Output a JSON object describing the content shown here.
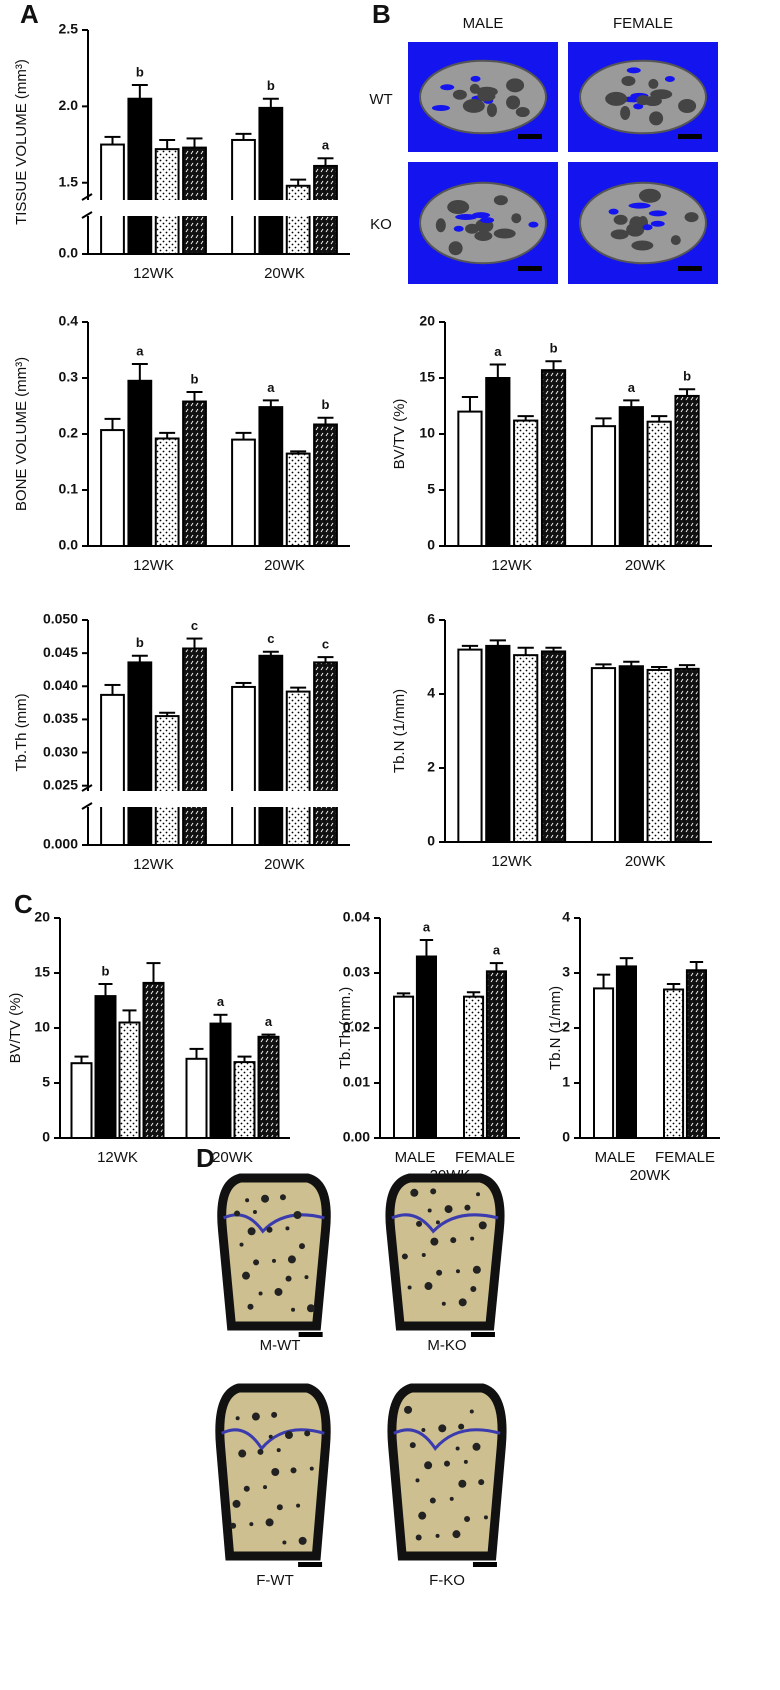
{
  "panels": {
    "letters": [
      "A",
      "B",
      "C",
      "D"
    ]
  },
  "images_b": {
    "columns": [
      "MALE",
      "FEMALE"
    ],
    "rows": [
      "WT",
      "KO"
    ]
  },
  "images_d": {
    "labels": [
      "M-WT",
      "M-KO",
      "F-WT",
      "F-KO"
    ]
  },
  "chart_data": [
    {
      "type": "bar",
      "y_label": "TISSUE VOLUME (mm³)",
      "categories": [
        "12WK",
        "20WK"
      ],
      "ylim": [
        0,
        2.5
      ],
      "axis_break": [
        0.1,
        1.4
      ],
      "yticks": [
        {
          "value": 0,
          "label": "0.0"
        },
        1.5,
        {
          "value": 2,
          "label": "2.0"
        },
        2.5
      ],
      "series": [
        {
          "color": "#ffffff",
          "pattern": "none",
          "values": [
            1.75,
            1.78
          ],
          "errors": [
            0.05,
            0.04
          ],
          "labels": [
            null,
            null
          ]
        },
        {
          "color": "#000000",
          "pattern": "none",
          "values": [
            2.05,
            1.99
          ],
          "errors": [
            0.09,
            0.06
          ],
          "labels": [
            "b",
            "b"
          ]
        },
        {
          "color": "#ffffff",
          "pattern": "dots",
          "values": [
            1.72,
            1.48
          ],
          "errors": [
            0.06,
            0.04
          ],
          "labels": [
            null,
            null
          ]
        },
        {
          "color": "#000000",
          "pattern": "hatch",
          "values": [
            1.73,
            1.61
          ],
          "errors": [
            0.06,
            0.05
          ],
          "labels": [
            null,
            "a"
          ]
        }
      ]
    },
    {
      "type": "bar",
      "y_label": "BONE  VOLUME (mm³)",
      "categories": [
        "12WK",
        "20WK"
      ],
      "ylim": [
        0,
        0.4
      ],
      "yticks": [
        {
          "value": 0,
          "label": "0.0"
        },
        0.1,
        0.2,
        0.3,
        0.4
      ],
      "series": [
        {
          "color": "#ffffff",
          "pattern": "none",
          "values": [
            0.207,
            0.19
          ],
          "errors": [
            0.02,
            0.012
          ],
          "labels": [
            null,
            null
          ]
        },
        {
          "color": "#000000",
          "pattern": "none",
          "values": [
            0.295,
            0.248
          ],
          "errors": [
            0.03,
            0.012
          ],
          "labels": [
            "a",
            "a"
          ]
        },
        {
          "color": "#ffffff",
          "pattern": "dots",
          "values": [
            0.192,
            0.165
          ],
          "errors": [
            0.01,
            0.004
          ],
          "labels": [
            null,
            null
          ]
        },
        {
          "color": "#000000",
          "pattern": "hatch",
          "values": [
            0.258,
            0.217
          ],
          "errors": [
            0.017,
            0.012
          ],
          "labels": [
            "b",
            "b"
          ]
        }
      ]
    },
    {
      "type": "bar",
      "y_label": "Tb.Th (mm)",
      "categories": [
        "12WK",
        "20WK"
      ],
      "ylim": [
        0,
        0.05
      ],
      "axis_break": [
        0.003,
        0.0245
      ],
      "yticks": [
        {
          "value": 0,
          "label": "0.000"
        },
        0.025,
        {
          "value": 0.03,
          "label": "0.030"
        },
        0.035,
        {
          "value": 0.04,
          "label": "0.040"
        },
        0.045,
        {
          "value": 0.05,
          "label": "0.050"
        }
      ],
      "series": [
        {
          "color": "#ffffff",
          "pattern": "none",
          "values": [
            0.0387,
            0.0399
          ],
          "errors": [
            0.0015,
            0.0006
          ],
          "labels": [
            null,
            null
          ]
        },
        {
          "color": "#000000",
          "pattern": "none",
          "values": [
            0.0436,
            0.0446
          ],
          "errors": [
            0.001,
            0.0006
          ],
          "labels": [
            "b",
            "c"
          ]
        },
        {
          "color": "#ffffff",
          "pattern": "dots",
          "values": [
            0.0355,
            0.0392
          ],
          "errors": [
            0.0005,
            0.0006
          ],
          "labels": [
            null,
            null
          ]
        },
        {
          "color": "#000000",
          "pattern": "hatch",
          "values": [
            0.0457,
            0.0436
          ],
          "errors": [
            0.0015,
            0.0008
          ],
          "labels": [
            "c",
            "c"
          ]
        }
      ]
    },
    {
      "type": "bar",
      "y_label": "BV/TV (%)",
      "categories": [
        "12WK",
        "20WK"
      ],
      "ylim": [
        0,
        20
      ],
      "yticks": [
        0,
        5,
        10,
        15,
        20
      ],
      "series": [
        {
          "color": "#ffffff",
          "pattern": "none",
          "values": [
            12.0,
            10.7
          ],
          "errors": [
            1.3,
            0.7
          ],
          "labels": [
            null,
            null
          ]
        },
        {
          "color": "#000000",
          "pattern": "none",
          "values": [
            15.0,
            12.4
          ],
          "errors": [
            1.2,
            0.6
          ],
          "labels": [
            "a",
            "a"
          ]
        },
        {
          "color": "#ffffff",
          "pattern": "dots",
          "values": [
            11.2,
            11.1
          ],
          "errors": [
            0.4,
            0.5
          ],
          "labels": [
            null,
            null
          ]
        },
        {
          "color": "#000000",
          "pattern": "hatch",
          "values": [
            15.7,
            13.4
          ],
          "errors": [
            0.8,
            0.6
          ],
          "labels": [
            "b",
            "b"
          ]
        }
      ]
    },
    {
      "type": "bar",
      "y_label": "Tb.N  (1/mm)",
      "categories": [
        "12WK",
        "20WK"
      ],
      "ylim": [
        0,
        6
      ],
      "yticks": [
        0,
        2,
        4,
        6
      ],
      "series": [
        {
          "color": "#ffffff",
          "pattern": "none",
          "values": [
            5.2,
            4.7
          ],
          "errors": [
            0.1,
            0.1
          ],
          "labels": [
            null,
            null
          ]
        },
        {
          "color": "#000000",
          "pattern": "none",
          "values": [
            5.3,
            4.75
          ],
          "errors": [
            0.15,
            0.12
          ],
          "labels": [
            null,
            null
          ]
        },
        {
          "color": "#ffffff",
          "pattern": "dots",
          "values": [
            5.05,
            4.65
          ],
          "errors": [
            0.2,
            0.08
          ],
          "labels": [
            null,
            null
          ]
        },
        {
          "color": "#000000",
          "pattern": "hatch",
          "values": [
            5.15,
            4.68
          ],
          "errors": [
            0.1,
            0.1
          ],
          "labels": [
            null,
            null
          ]
        }
      ]
    },
    {
      "type": "bar",
      "y_label": "BV/TV (%)",
      "categories": [
        "12WK",
        "20WK"
      ],
      "ylim": [
        0,
        20
      ],
      "yticks": [
        0,
        5,
        10,
        15,
        20
      ],
      "series": [
        {
          "color": "#ffffff",
          "pattern": "none",
          "values": [
            6.8,
            7.2
          ],
          "errors": [
            0.6,
            0.9
          ],
          "labels": [
            null,
            null
          ]
        },
        {
          "color": "#000000",
          "pattern": "none",
          "values": [
            12.9,
            10.4
          ],
          "errors": [
            1.1,
            0.8
          ],
          "labels": [
            "b",
            "a"
          ]
        },
        {
          "color": "#ffffff",
          "pattern": "dots",
          "values": [
            10.5,
            6.9
          ],
          "errors": [
            1.1,
            0.5
          ],
          "labels": [
            null,
            null
          ]
        },
        {
          "color": "#000000",
          "pattern": "hatch",
          "values": [
            14.1,
            9.2
          ],
          "errors": [
            1.8,
            0.2
          ],
          "labels": [
            null,
            "a"
          ]
        }
      ]
    },
    {
      "type": "bar",
      "y_label": "Tb.Th (mm.)",
      "categories": [
        "MALE",
        "FEMALE"
      ],
      "x_label": "20WK",
      "ylim": [
        0,
        0.04
      ],
      "yticks": [
        {
          "value": 0,
          "label": "0.00"
        },
        0.01,
        0.02,
        0.03,
        0.04
      ],
      "series": [
        {
          "color": "#ffffff",
          "pattern": "none",
          "values": [
            0.0257,
            null
          ],
          "errors": [
            0.0006,
            null
          ],
          "labels": [
            null,
            null
          ]
        },
        {
          "color": "#000000",
          "pattern": "none",
          "values": [
            0.033,
            null
          ],
          "errors": [
            0.003,
            null
          ],
          "labels": [
            "a",
            null
          ]
        },
        {
          "color": "#ffffff",
          "pattern": "dots",
          "values": [
            null,
            0.0257
          ],
          "errors": [
            null,
            0.0008
          ],
          "labels": [
            null,
            null
          ]
        },
        {
          "color": "#000000",
          "pattern": "hatch",
          "values": [
            null,
            0.0303
          ],
          "errors": [
            null,
            0.0015
          ],
          "labels": [
            null,
            "a"
          ]
        }
      ]
    },
    {
      "type": "bar",
      "y_label": "Tb.N (1/mm)",
      "categories": [
        "MALE",
        "FEMALE"
      ],
      "x_label": "20WK",
      "ylim": [
        0,
        4
      ],
      "yticks": [
        0,
        1,
        2,
        3,
        4
      ],
      "series": [
        {
          "color": "#ffffff",
          "pattern": "none",
          "values": [
            2.72,
            null
          ],
          "errors": [
            0.25,
            null
          ],
          "labels": [
            null,
            null
          ]
        },
        {
          "color": "#000000",
          "pattern": "none",
          "values": [
            3.12,
            null
          ],
          "errors": [
            0.15,
            null
          ],
          "labels": [
            null,
            null
          ]
        },
        {
          "color": "#ffffff",
          "pattern": "dots",
          "values": [
            null,
            2.7
          ],
          "errors": [
            null,
            0.1
          ],
          "labels": [
            null,
            null
          ]
        },
        {
          "color": "#000000",
          "pattern": "hatch",
          "values": [
            null,
            3.05
          ],
          "errors": [
            null,
            0.15
          ],
          "labels": [
            null,
            null
          ]
        }
      ]
    }
  ]
}
